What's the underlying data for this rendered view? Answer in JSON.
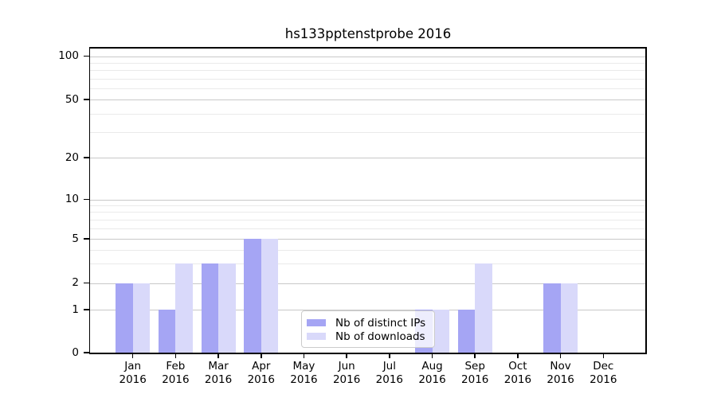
{
  "chart_data": {
    "type": "bar",
    "title": "hs133pptenstprobe 2016",
    "categories": [
      "Jan",
      "Feb",
      "Mar",
      "Apr",
      "May",
      "Jun",
      "Jul",
      "Aug",
      "Sep",
      "Oct",
      "Nov",
      "Dec"
    ],
    "category_year_label": "2016",
    "series": [
      {
        "name": "Nb of distinct IPs",
        "color": "#a5a5f4",
        "values": [
          2,
          1,
          3,
          5,
          0,
          0,
          0,
          1,
          1,
          0,
          2,
          0
        ]
      },
      {
        "name": "Nb of downloads",
        "color": "#d9d9fa",
        "values": [
          2,
          3,
          3,
          5,
          0,
          0,
          0,
          1,
          3,
          0,
          2,
          0
        ]
      }
    ],
    "xlabel": "",
    "ylabel": "",
    "y_axis": {
      "scale": "symlog",
      "tick_values": [
        0,
        1,
        2,
        5,
        10,
        20,
        50,
        100
      ],
      "tick_labels": [
        "0",
        "1",
        "2",
        "5",
        "10",
        "20",
        "50",
        "100"
      ],
      "minor_gridline_values": [
        3,
        4,
        6,
        7,
        8,
        9,
        30,
        40,
        60,
        70,
        80,
        90
      ],
      "ylim": [
        0,
        115
      ]
    },
    "grid": true,
    "legend": {
      "position": "lower-center-inside",
      "entries": [
        "Nb of distinct IPs",
        "Nb of downloads"
      ]
    },
    "colors": {
      "distinct_ips_bar": "#a5a5f4",
      "downloads_bar": "#d9d9fa",
      "major_gridline": "#c8c8c8",
      "minor_gridline": "#eaeaea",
      "spine": "#000000",
      "background": "#ffffff"
    }
  }
}
